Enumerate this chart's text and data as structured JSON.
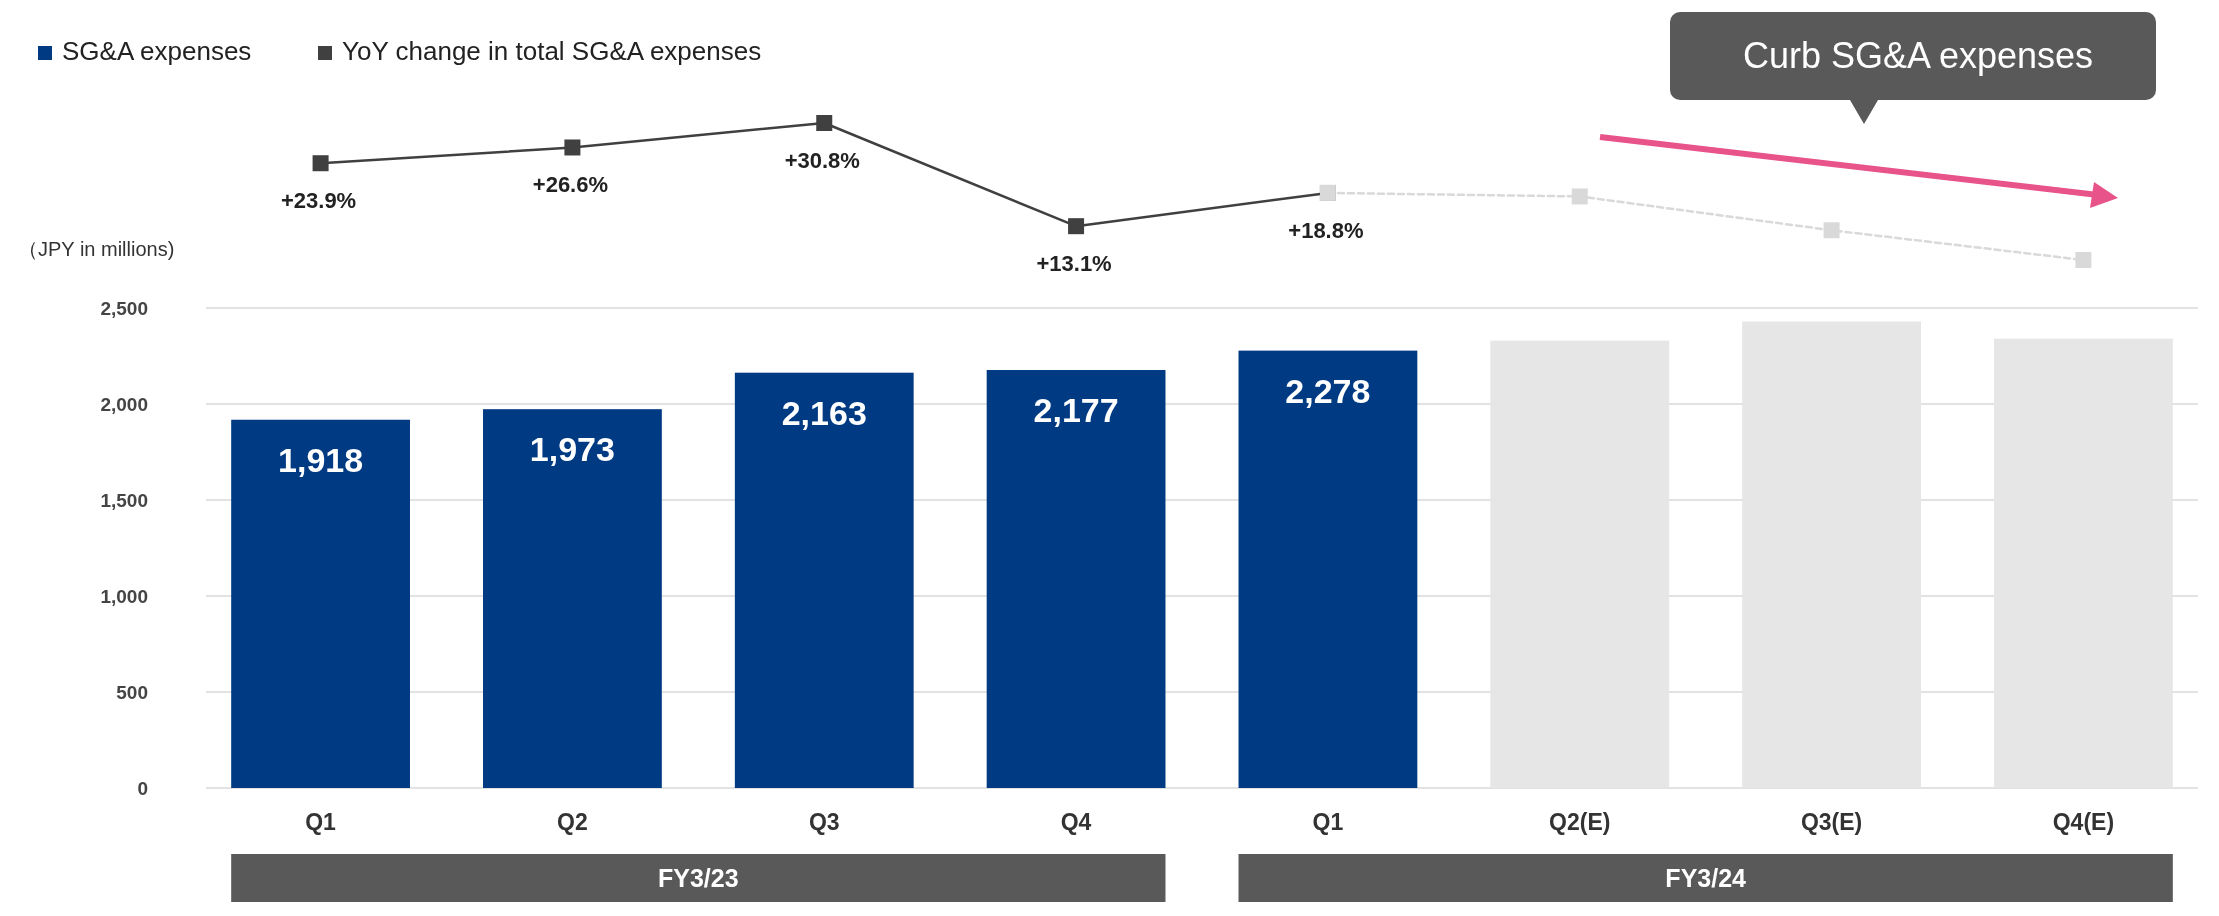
{
  "chart_data": [
    {
      "type": "line",
      "legend": "top left",
      "marker": "square",
      "series": [
        {
          "name": "YoY change in total SG&A expenses",
          "color": "#404040",
          "line_style": "solid",
          "values": [
            23.9,
            26.6,
            30.8,
            13.1,
            18.8,
            null,
            null,
            null
          ],
          "value_labels": [
            "+23.9%",
            "+26.6%",
            "+30.8%",
            "+13.1%",
            "+18.8%",
            null,
            null,
            null
          ]
        },
        {
          "color": "#d9d9d9",
          "line_style": "dashed",
          "values": [
            null,
            null,
            null,
            null,
            18.8,
            18.2,
            12.4,
            7.3
          ]
        }
      ],
      "annotations": [
        "Curb SG&A expenses"
      ]
    },
    {
      "type": "bar",
      "ylabel": "（JPY in millions)",
      "categories": [
        "Q1",
        "Q2",
        "Q3",
        "Q4",
        "Q1",
        "Q2(E)",
        "Q3(E)",
        "Q4(E)"
      ],
      "ylim": [
        0,
        2500
      ],
      "yticks": [
        0,
        500,
        {
          "value": 1000,
          "label": "1,000"
        },
        {
          "value": 1500,
          "label": "1,500"
        },
        {
          "value": 2000,
          "label": "2,000"
        },
        {
          "value": 2500,
          "label": "2,500"
        }
      ],
      "grid": "y",
      "legend": "top left",
      "series": [
        {
          "name": "SG&A expenses",
          "color": "#003a83",
          "colors": [
            "#003a83",
            "#003a83",
            "#003a83",
            "#003a83",
            "#003a83",
            "#e6e6e6",
            "#e6e6e6",
            "#e6e6e6"
          ],
          "values": [
            1918,
            1973,
            2163,
            2177,
            2278,
            2330,
            2430,
            2340
          ],
          "value_labels": [
            "1,918",
            "1,973",
            "2,163",
            "2,177",
            "2,278",
            null,
            null,
            null
          ]
        }
      ],
      "annotations": [
        "FY3/23",
        "FY3/24"
      ]
    }
  ]
}
